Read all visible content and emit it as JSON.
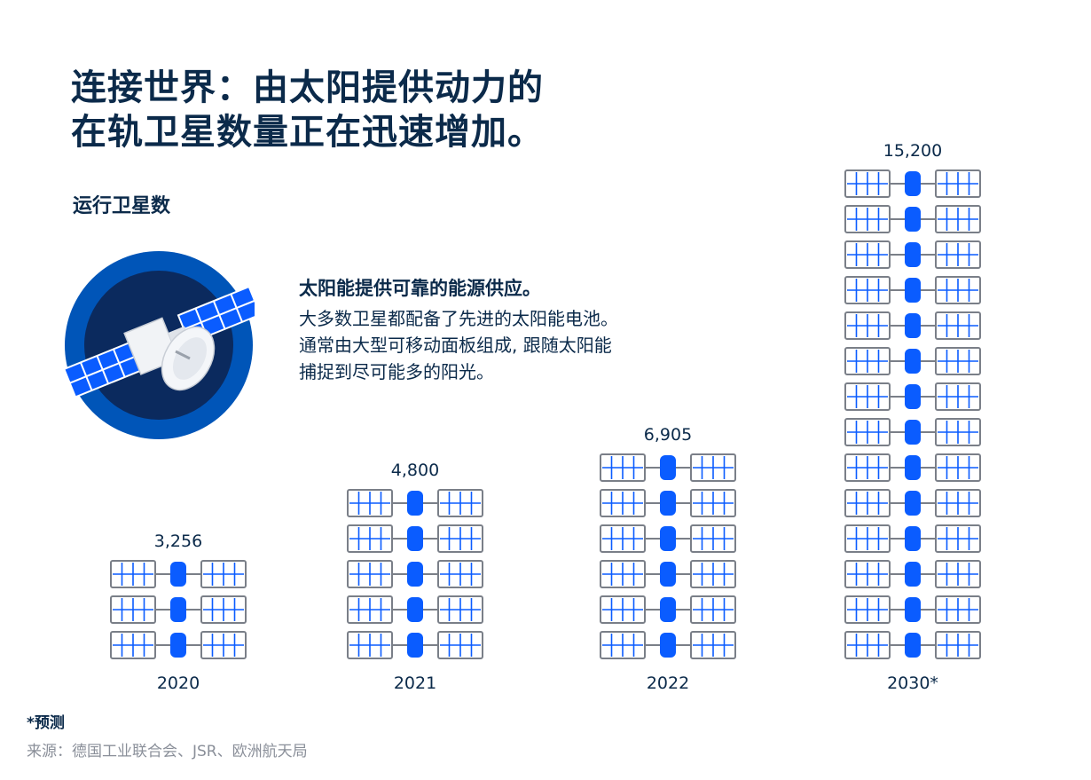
{
  "title_lines": [
    "连接世界：由太阳提供动力的",
    "在轨卫星数量正在迅速增加。"
  ],
  "subtitle": "运行卫星数",
  "info": {
    "heading": "太阳能提供可靠的能源供应。",
    "lines": [
      "大多数卫星都配备了先进的太阳能电池。",
      "通常由大型可移动面板组成, 跟随太阳能",
      "捕捉到尽可能多的阳光。"
    ]
  },
  "footnote": "*预测",
  "source": "来源：德国工业联合会、JSR、欧洲航天局",
  "colors": {
    "navy": "#0b2a4a",
    "blue": "#0a5cff",
    "panel_stroke": "#7a7f88",
    "circle_outer": "#0055b8",
    "circle_inner": "#0b2a5e"
  },
  "chart_data": {
    "type": "pictogram",
    "title": "连接世界：由太阳提供动力的在轨卫星数量正在迅速增加。",
    "ylabel": "运行卫星数",
    "categories": [
      "2020",
      "2021",
      "2022",
      "2030*"
    ],
    "values": [
      3256,
      4800,
      6905,
      15200
    ],
    "value_labels": [
      "3,256",
      "4,800",
      "6,905",
      "15,200"
    ],
    "icon_counts": [
      3,
      5,
      6,
      14
    ],
    "icon": "satellite-icon"
  }
}
